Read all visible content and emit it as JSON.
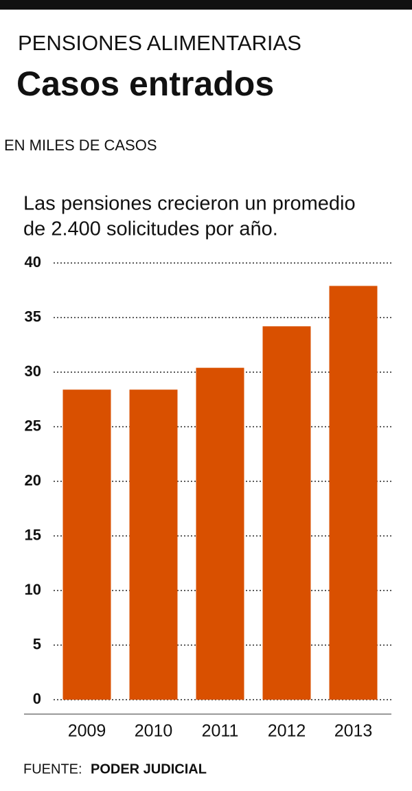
{
  "chart_data": {
    "type": "bar",
    "kicker": "PENSIONES ALIMENTARIAS",
    "title": "Casos entrados",
    "subtitle": "EN MILES DE CASOS",
    "annotation": [
      "Las pensiones crecieron un promedio",
      "de 2.400 solicitudes por año."
    ],
    "categories": [
      "2009",
      "2010",
      "2011",
      "2012",
      "2013"
    ],
    "values": [
      28.4,
      28.4,
      30.4,
      34.2,
      37.9
    ],
    "color": "#d95000",
    "ylim": [
      0,
      40
    ],
    "yticks": [
      0,
      5,
      10,
      15,
      20,
      25,
      30,
      35,
      40
    ],
    "grid": true,
    "source_label": "FUENTE:",
    "source": "PODER JUDICIAL"
  }
}
